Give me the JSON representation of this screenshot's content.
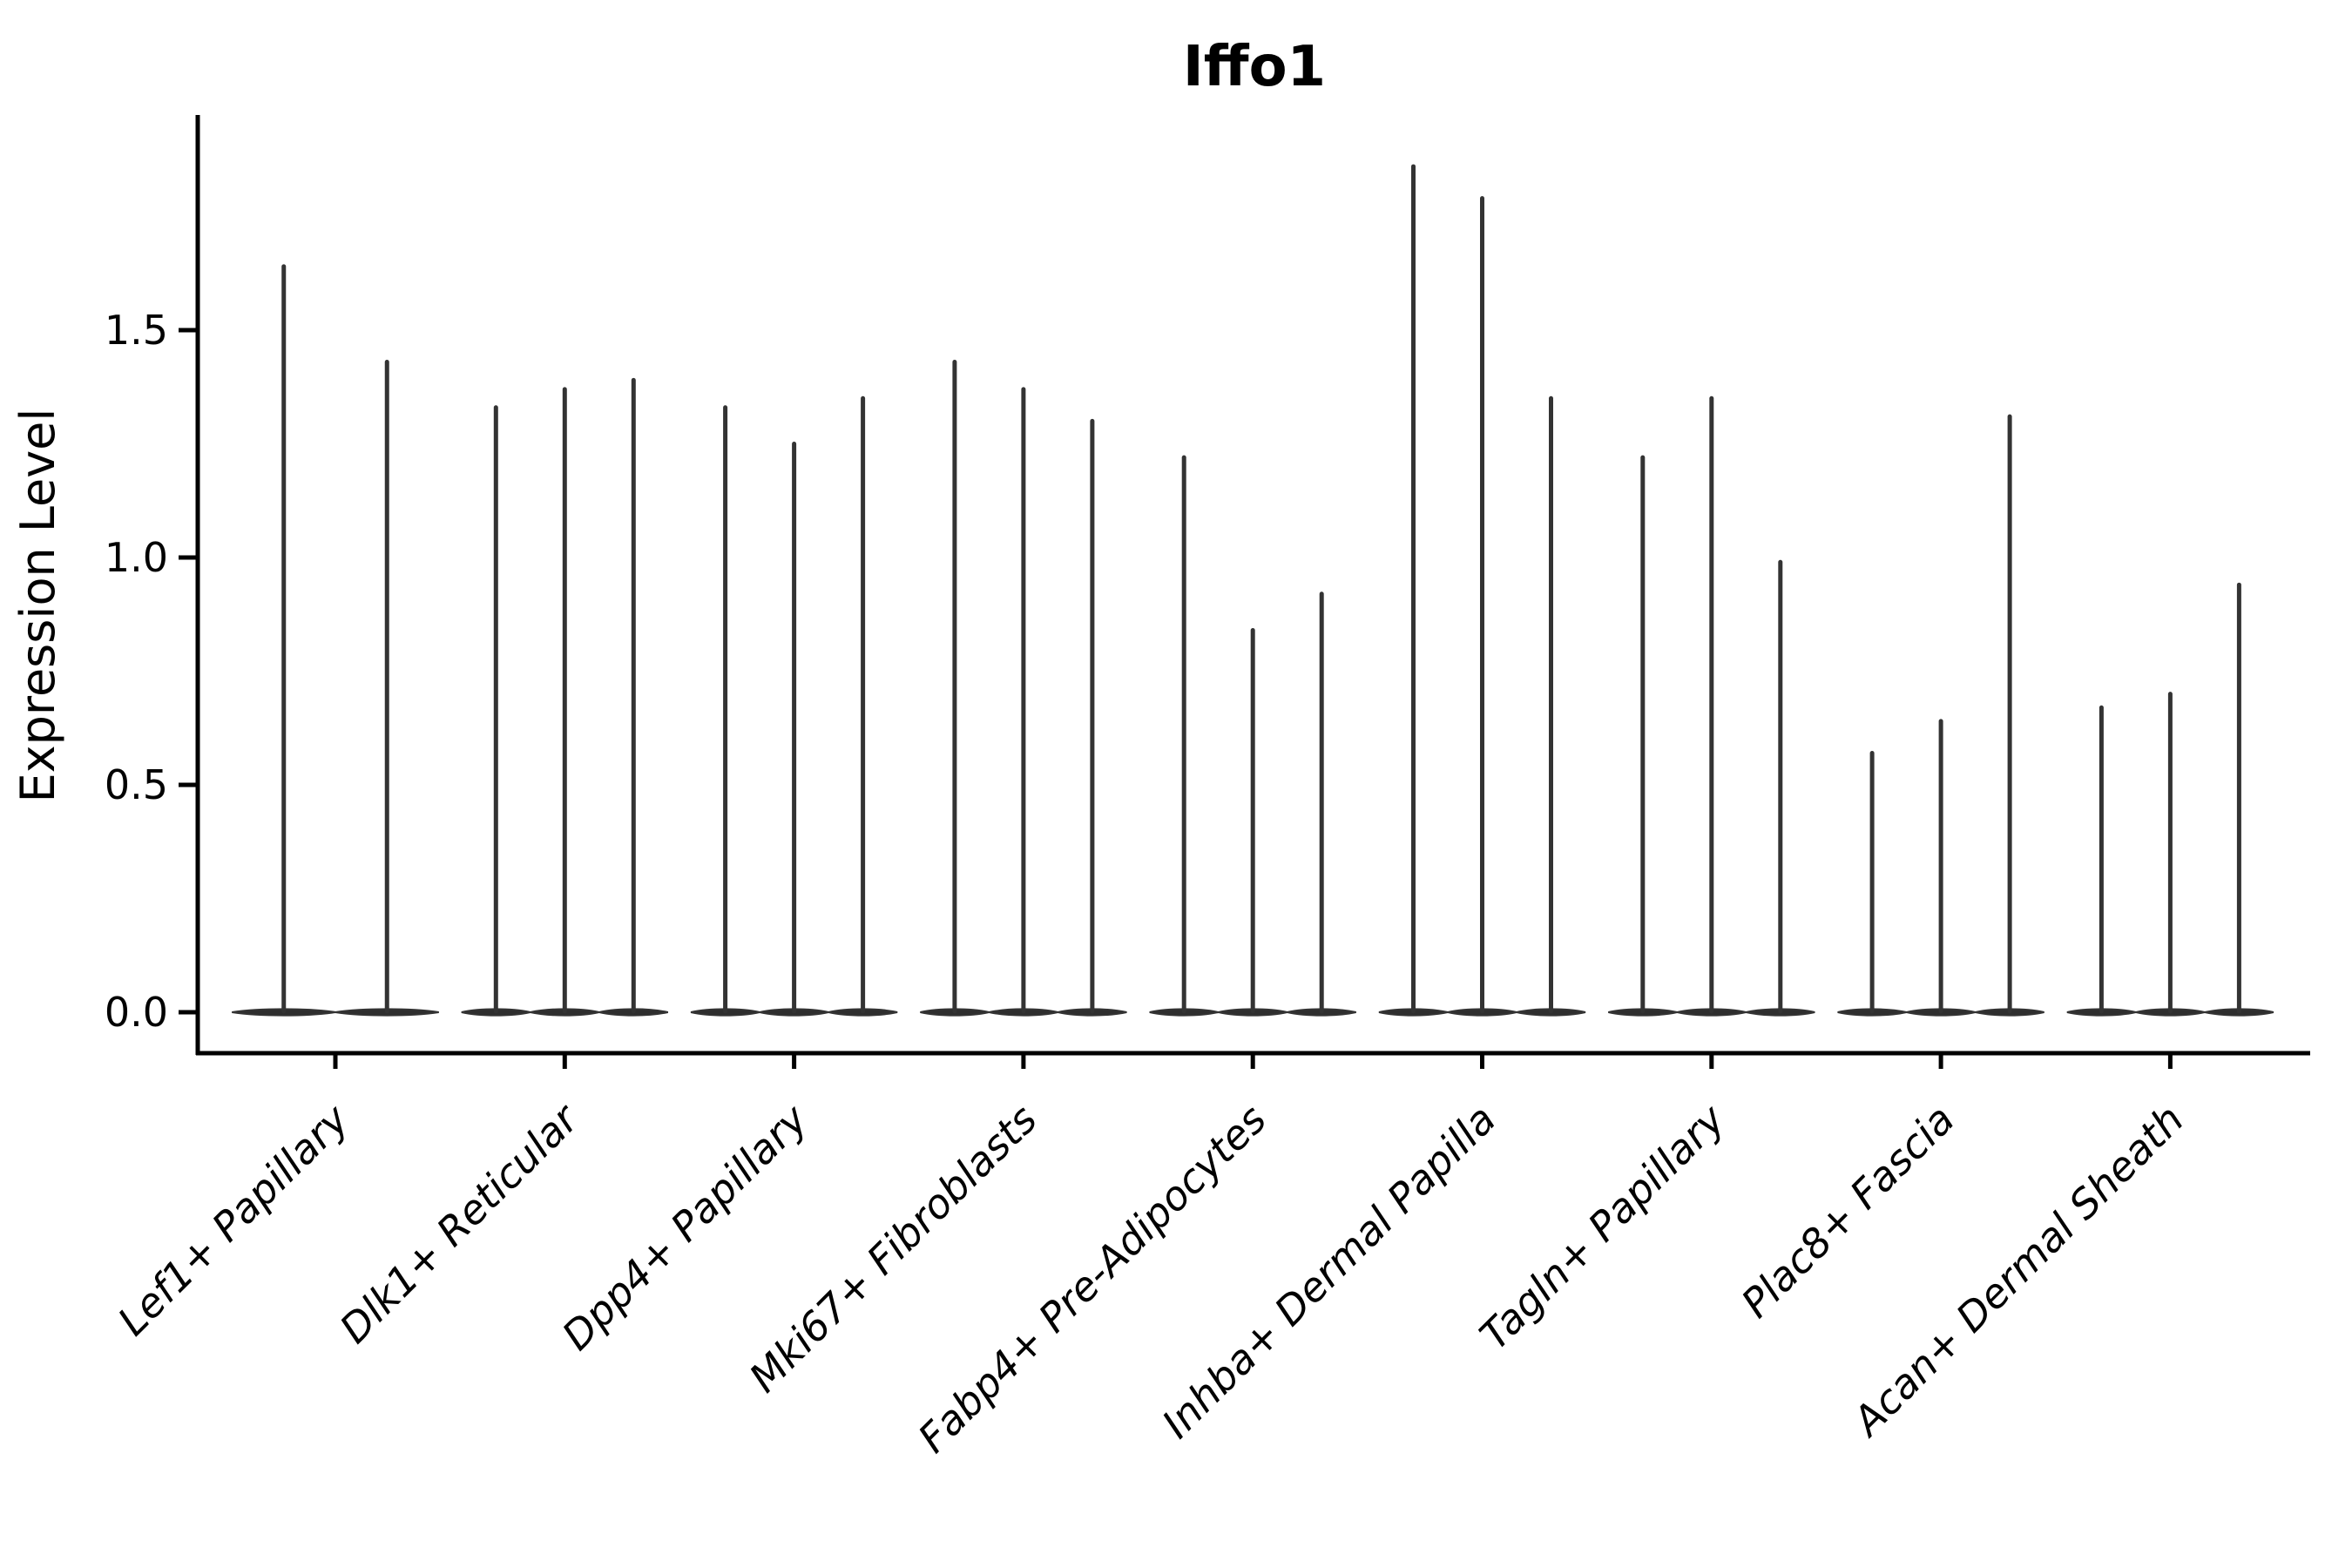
{
  "title": "Iffo1",
  "axes": {
    "ylabel": "Expression Level"
  },
  "chart_data": {
    "type": "violin",
    "title": "Iffo1",
    "xlabel": "",
    "ylabel": "Expression Level",
    "categories": [
      "Lef1+ Papillary",
      "Dlk1+ Reticular",
      "Dpp4+ Papillary",
      "Mki67+ Fibroblasts",
      "Fabp4+ Pre-Adipocytes",
      "Inhba+ Dermal Papilla",
      "Tagln+ Papillary",
      "Plac8+ Fascia",
      "Acan+ Dermal Sheath"
    ],
    "violin_max_values_per_category": [
      [
        1.64,
        1.43
      ],
      [
        1.33,
        1.37,
        1.39
      ],
      [
        1.33,
        1.25,
        1.35
      ],
      [
        1.43,
        1.37,
        1.3
      ],
      [
        1.22,
        0.84,
        0.92
      ],
      [
        1.86,
        1.79,
        1.35
      ],
      [
        1.22,
        1.35,
        0.99
      ],
      [
        0.57,
        0.64,
        1.31
      ],
      [
        0.67,
        0.7,
        0.94
      ]
    ],
    "violin_shape_note": "density mass concentrated at 0 (flat tapered body on baseline) with a thin vertical spike up to the max value",
    "yticks": [
      0.0,
      0.5,
      1.0,
      1.5
    ],
    "ytick_labels": [
      "0.0",
      "0.5",
      "1.0",
      "1.5"
    ],
    "ylim": [
      0,
      1.97
    ],
    "grid": false,
    "legend": "none",
    "colors": {
      "violin_line": "#333333",
      "violin_body": "#2e2e2e",
      "axis": "#000000",
      "text": "#000000",
      "background": "#ffffff"
    }
  }
}
